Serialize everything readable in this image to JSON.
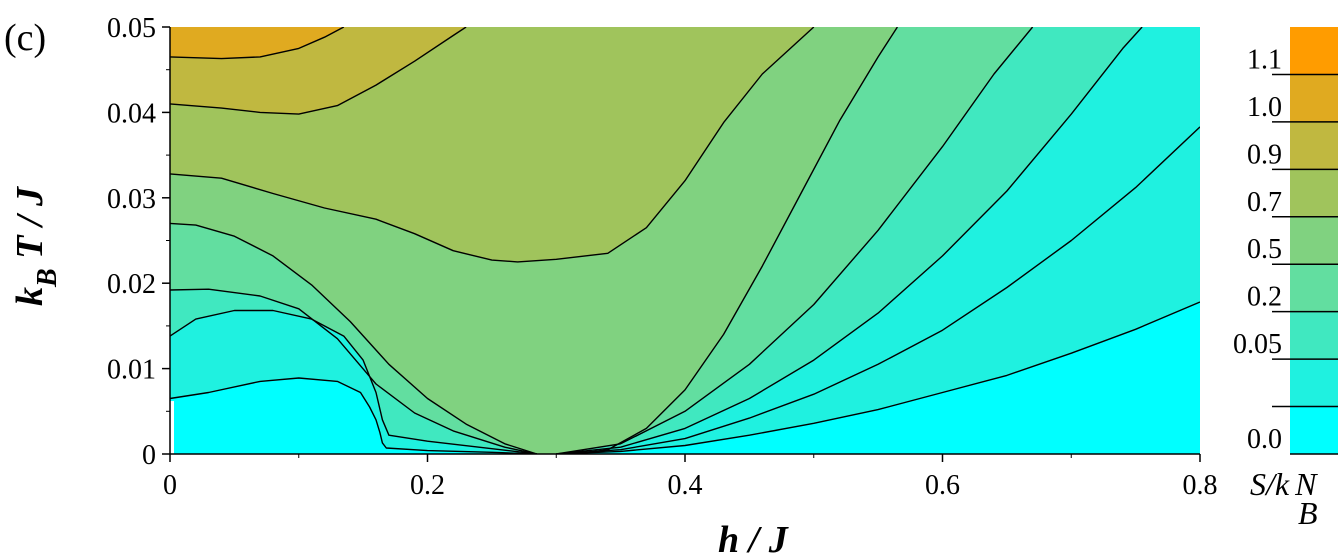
{
  "panel_label": "(c)",
  "chart_data": {
    "type": "heatmap",
    "subtype": "filled-contour",
    "title": "",
    "xlabel": {
      "main": "h",
      "rest": " / J"
    },
    "ylabel": {
      "main": "k",
      "sub": "B",
      "rest": " T / J"
    },
    "xlim": [
      0,
      0.8
    ],
    "ylim": [
      0,
      0.05
    ],
    "x_ticks": [
      "0",
      "0.2",
      "0.4",
      "0.6",
      "0.8"
    ],
    "y_ticks": [
      "0",
      "0.01",
      "0.02",
      "0.03",
      "0.04",
      "0.05"
    ],
    "colorbar": {
      "label": {
        "main": "S/k",
        "sub": "B",
        "rest": "N"
      },
      "labels": [
        "0.0",
        "0.05",
        "0.2",
        "0.5",
        "0.7",
        "0.9",
        "1.0",
        "1.1"
      ],
      "bands": [
        {
          "color": "#00ffff"
        },
        {
          "color": "#1ff1e0"
        },
        {
          "color": "#40e8c0"
        },
        {
          "color": "#62dea0"
        },
        {
          "color": "#80d280"
        },
        {
          "color": "#a0c45c"
        },
        {
          "color": "#c0b840"
        },
        {
          "color": "#e0aa20"
        },
        {
          "color": "#ff9c00"
        }
      ]
    },
    "contours": [
      {
        "level": "L1",
        "points": [
          [
            0,
            0.0065
          ],
          [
            0.03,
            0.0072
          ],
          [
            0.07,
            0.0085
          ],
          [
            0.1,
            0.0089
          ],
          [
            0.13,
            0.0085
          ],
          [
            0.148,
            0.0072
          ],
          [
            0.155,
            0.0055
          ],
          [
            0.16,
            0.004
          ],
          [
            0.163,
            0.0025
          ],
          [
            0.165,
            0.0013
          ],
          [
            0.168,
            0.0007
          ],
          [
            0.2,
            0.0004
          ],
          [
            0.25,
            0.0002
          ],
          [
            0.285,
            0
          ]
        ]
      },
      {
        "level": "L2",
        "points": [
          [
            0,
            0.0138
          ],
          [
            0.02,
            0.0158
          ],
          [
            0.05,
            0.0168
          ],
          [
            0.08,
            0.0168
          ],
          [
            0.11,
            0.0158
          ],
          [
            0.135,
            0.0138
          ],
          [
            0.15,
            0.011
          ],
          [
            0.16,
            0.0072
          ],
          [
            0.165,
            0.004
          ],
          [
            0.17,
            0.0022
          ],
          [
            0.2,
            0.0015
          ],
          [
            0.24,
            0.0008
          ],
          [
            0.285,
            0
          ]
        ]
      },
      {
        "level": "L3",
        "points": [
          [
            0,
            0.0192
          ],
          [
            0.03,
            0.0193
          ],
          [
            0.07,
            0.0185
          ],
          [
            0.1,
            0.017
          ],
          [
            0.13,
            0.0135
          ],
          [
            0.16,
            0.0082
          ],
          [
            0.19,
            0.0048
          ],
          [
            0.22,
            0.0027
          ],
          [
            0.26,
            0.0008
          ],
          [
            0.285,
            0
          ]
        ]
      },
      {
        "level": "L4",
        "points": [
          [
            0,
            0.027
          ],
          [
            0.02,
            0.0268
          ],
          [
            0.05,
            0.0255
          ],
          [
            0.08,
            0.0232
          ],
          [
            0.11,
            0.0198
          ],
          [
            0.14,
            0.0155
          ],
          [
            0.17,
            0.0105
          ],
          [
            0.2,
            0.0065
          ],
          [
            0.23,
            0.0035
          ],
          [
            0.26,
            0.0012
          ],
          [
            0.285,
            0
          ]
        ]
      },
      {
        "level": "L5",
        "points": [
          [
            0,
            0.0328
          ],
          [
            0.04,
            0.0323
          ],
          [
            0.08,
            0.0305
          ],
          [
            0.12,
            0.0288
          ],
          [
            0.16,
            0.0275
          ],
          [
            0.19,
            0.0258
          ],
          [
            0.22,
            0.0238
          ],
          [
            0.25,
            0.0227
          ],
          [
            0.27,
            0.0225
          ],
          [
            0.3,
            0.0228
          ],
          [
            0.34,
            0.0235
          ],
          [
            0.37,
            0.0265
          ],
          [
            0.4,
            0.032
          ],
          [
            0.43,
            0.0388
          ],
          [
            0.46,
            0.0445
          ],
          [
            0.5,
            0.05
          ]
        ]
      },
      {
        "level": "L6",
        "points": [
          [
            0,
            0.041
          ],
          [
            0.04,
            0.0405
          ],
          [
            0.07,
            0.04
          ],
          [
            0.1,
            0.0398
          ],
          [
            0.13,
            0.0408
          ],
          [
            0.16,
            0.0432
          ],
          [
            0.19,
            0.046
          ],
          [
            0.22,
            0.049
          ],
          [
            0.23,
            0.05
          ]
        ]
      },
      {
        "level": "L7",
        "points": [
          [
            0,
            0.0465
          ],
          [
            0.04,
            0.0463
          ],
          [
            0.07,
            0.0465
          ],
          [
            0.1,
            0.0475
          ],
          [
            0.12,
            0.0488
          ],
          [
            0.135,
            0.05
          ]
        ]
      },
      {
        "level": "R1",
        "points": [
          [
            0.315,
            0
          ],
          [
            0.34,
            0.0005
          ],
          [
            0.37,
            0.003
          ],
          [
            0.4,
            0.0075
          ],
          [
            0.43,
            0.014
          ],
          [
            0.46,
            0.022
          ],
          [
            0.49,
            0.0305
          ],
          [
            0.52,
            0.039
          ],
          [
            0.55,
            0.0465
          ],
          [
            0.565,
            0.05
          ]
        ]
      },
      {
        "level": "R2",
        "points": [
          [
            0.3,
            0
          ],
          [
            0.35,
            0.0012
          ],
          [
            0.4,
            0.005
          ],
          [
            0.45,
            0.0105
          ],
          [
            0.5,
            0.0175
          ],
          [
            0.55,
            0.0262
          ],
          [
            0.6,
            0.036
          ],
          [
            0.64,
            0.0445
          ],
          [
            0.67,
            0.05
          ]
        ]
      },
      {
        "level": "R3",
        "points": [
          [
            0.3,
            0
          ],
          [
            0.35,
            0.0008
          ],
          [
            0.4,
            0.003
          ],
          [
            0.45,
            0.0065
          ],
          [
            0.5,
            0.011
          ],
          [
            0.55,
            0.0165
          ],
          [
            0.6,
            0.0232
          ],
          [
            0.65,
            0.0308
          ],
          [
            0.7,
            0.0398
          ],
          [
            0.74,
            0.0475
          ],
          [
            0.755,
            0.05
          ]
        ]
      },
      {
        "level": "R4",
        "points": [
          [
            0.3,
            0
          ],
          [
            0.35,
            0.0005
          ],
          [
            0.4,
            0.0018
          ],
          [
            0.45,
            0.0042
          ],
          [
            0.5,
            0.007
          ],
          [
            0.55,
            0.0105
          ],
          [
            0.6,
            0.0145
          ],
          [
            0.65,
            0.0195
          ],
          [
            0.7,
            0.025
          ],
          [
            0.75,
            0.0312
          ],
          [
            0.8,
            0.0383
          ]
        ]
      },
      {
        "level": "R5",
        "points": [
          [
            0.3,
            0
          ],
          [
            0.35,
            0.0003
          ],
          [
            0.4,
            0.001
          ],
          [
            0.45,
            0.0022
          ],
          [
            0.5,
            0.0036
          ],
          [
            0.55,
            0.0052
          ],
          [
            0.6,
            0.0072
          ],
          [
            0.65,
            0.0092
          ],
          [
            0.7,
            0.0118
          ],
          [
            0.75,
            0.0146
          ],
          [
            0.8,
            0.0178
          ]
        ]
      }
    ]
  }
}
